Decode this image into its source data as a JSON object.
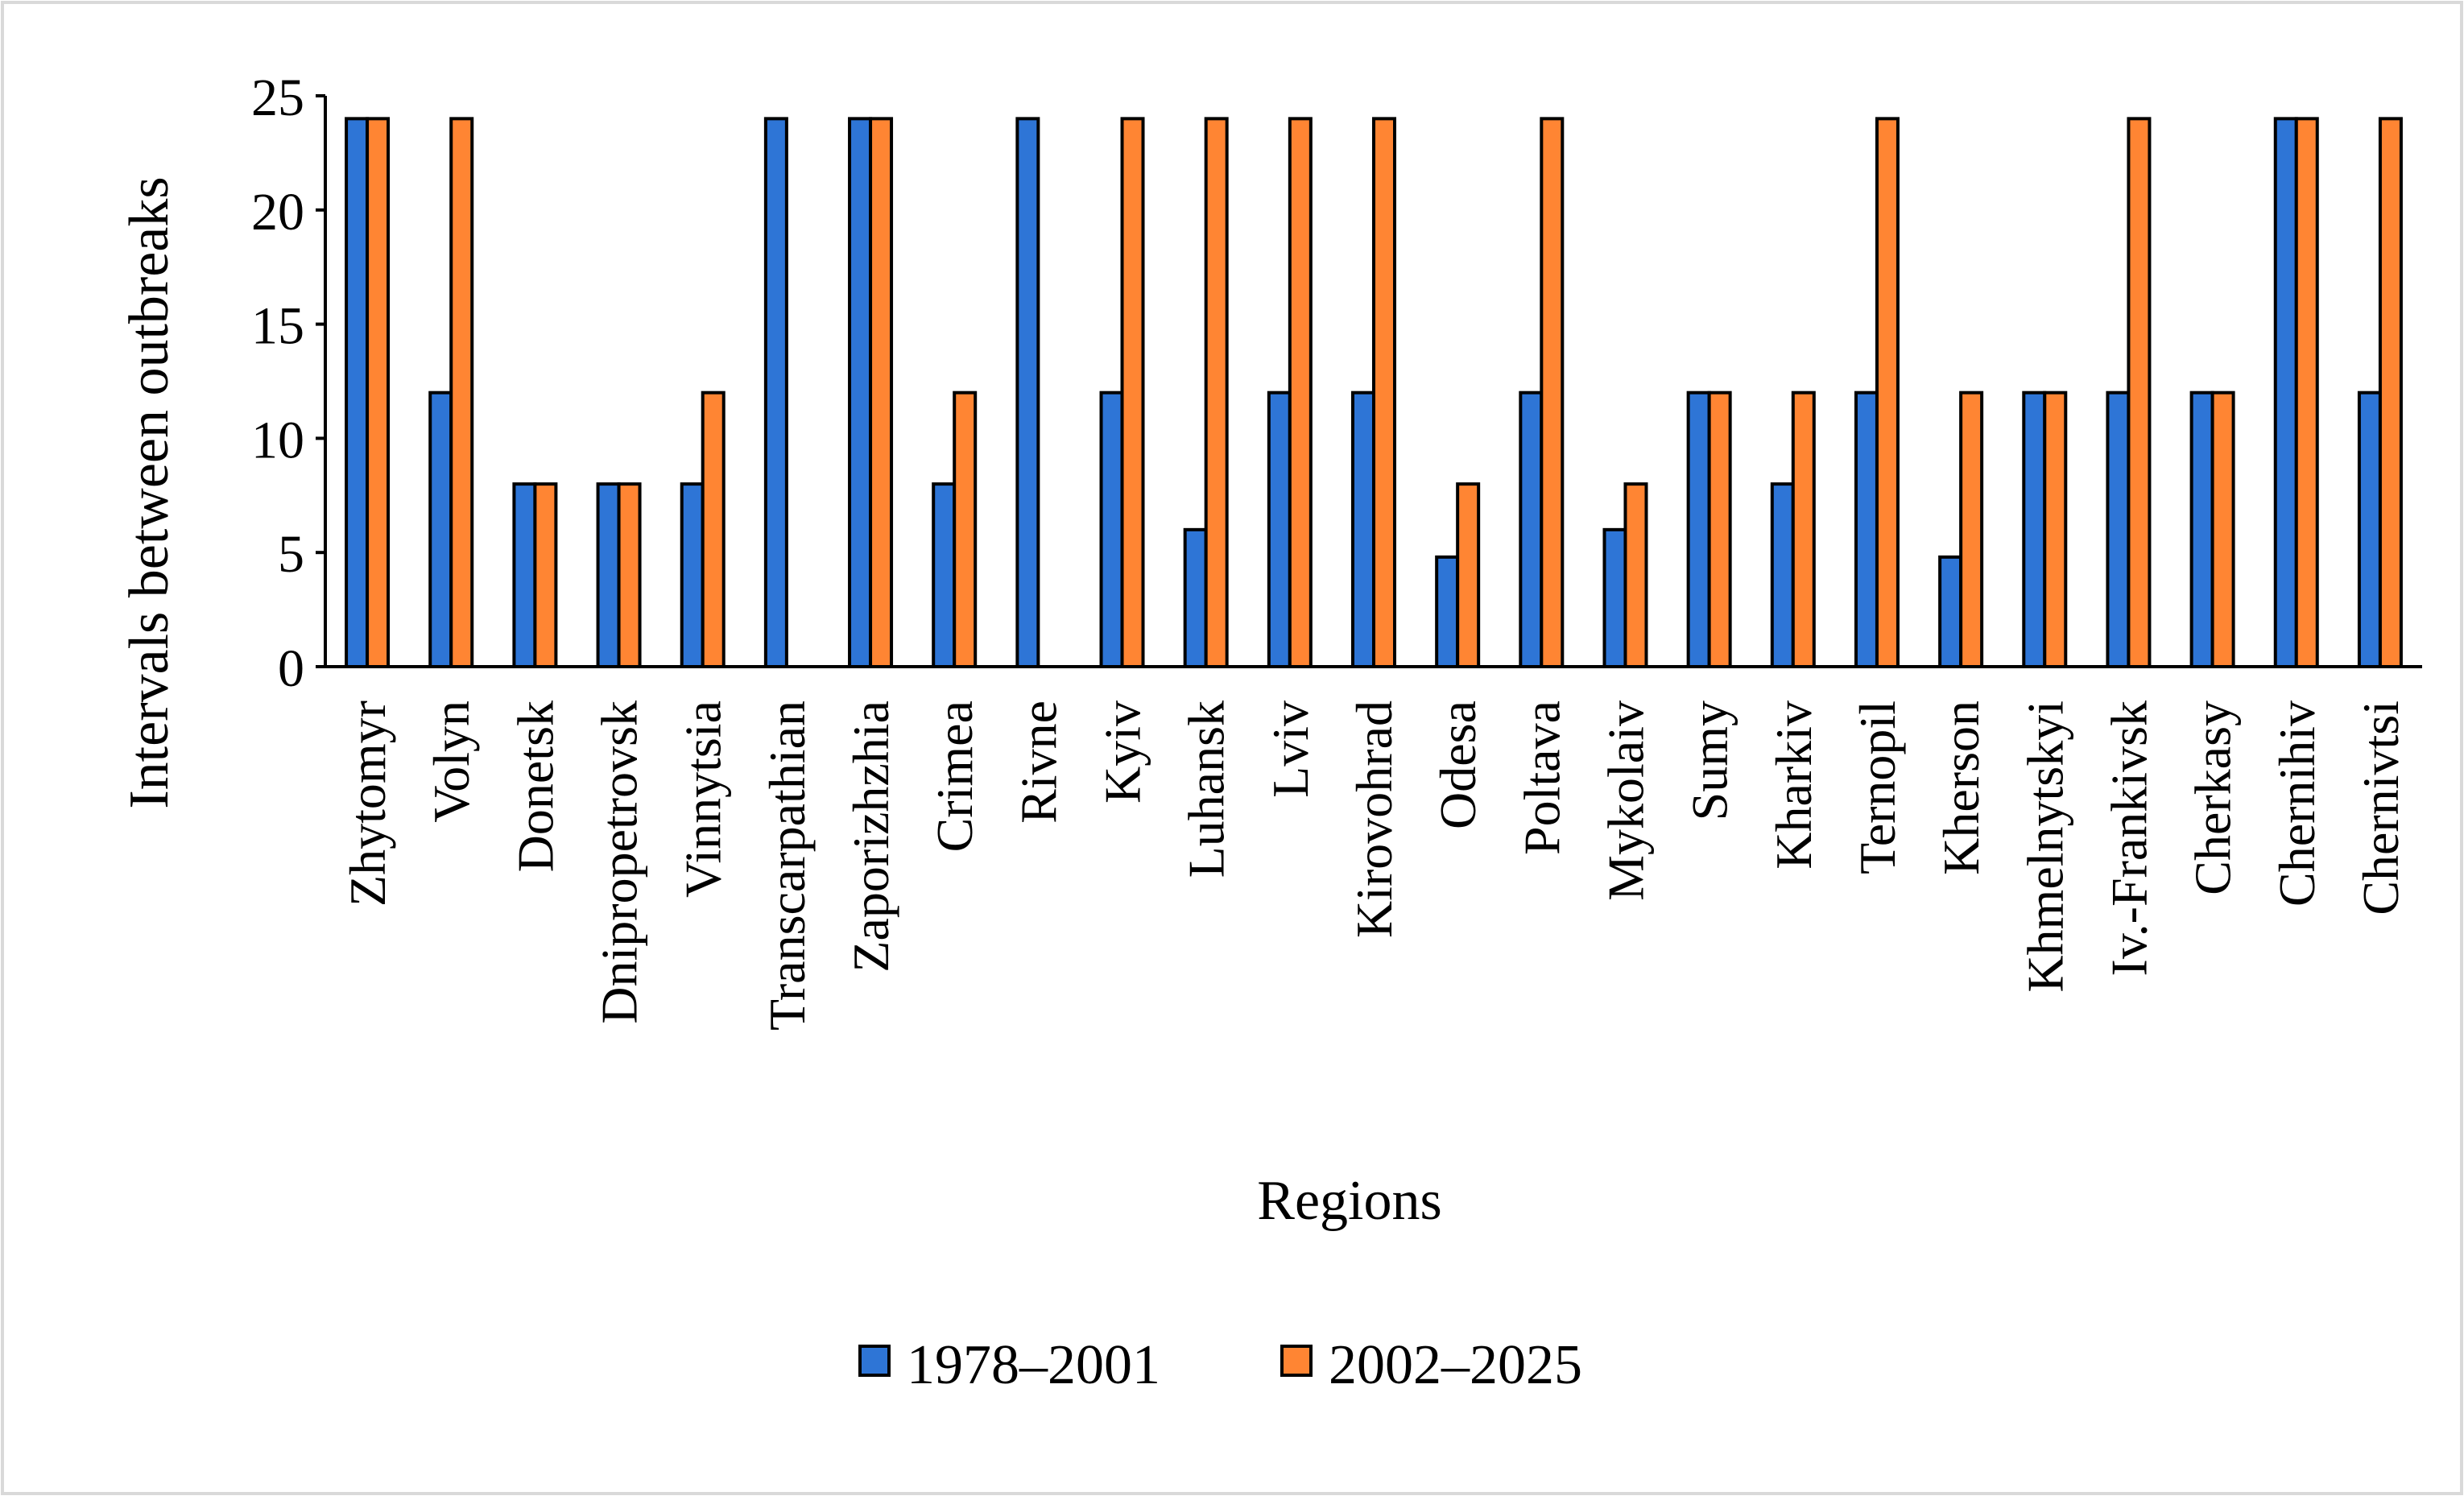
{
  "chart_data": {
    "type": "bar",
    "title": "",
    "xlabel": "Regions",
    "ylabel": "Intervals between outbreaks",
    "ylim": [
      0,
      25
    ],
    "yticks": [
      0,
      5,
      10,
      15,
      20,
      25
    ],
    "grid": false,
    "legend_position": "bottom",
    "categories": [
      "Zhytomyr",
      "Volyn",
      "Donetsk",
      "Dnipropetrovsk",
      "Vinnytsia",
      "Transcarpathian",
      "Zaporizhzhia",
      "Crimea",
      "Rivne",
      "Kyiv",
      "Luhansk",
      "Lviv",
      "Kirovohrad",
      "Odesa",
      "Poltava",
      "Mykolaiv",
      "Sumy",
      "Kharkiv",
      "Ternopil",
      "Kherson",
      "Khmelnytskyi",
      "Iv.-Frankivsk",
      "Cherkasy",
      "Chernihiv",
      "Chernivtsi"
    ],
    "series": [
      {
        "name": "1978–2001",
        "color": "#2E75D6",
        "values": [
          24,
          12,
          8,
          8,
          8,
          24,
          24,
          8,
          24,
          12,
          6,
          12,
          12,
          4.8,
          12,
          6,
          12,
          8,
          12,
          4.8,
          12,
          12,
          12,
          24,
          12
        ]
      },
      {
        "name": "2002–2025",
        "color": "#FF8533",
        "values": [
          24,
          24,
          8,
          8,
          12,
          0,
          24,
          12,
          0,
          24,
          24,
          24,
          24,
          8,
          24,
          8,
          12,
          12,
          24,
          12,
          12,
          24,
          12,
          24,
          24
        ]
      }
    ]
  }
}
